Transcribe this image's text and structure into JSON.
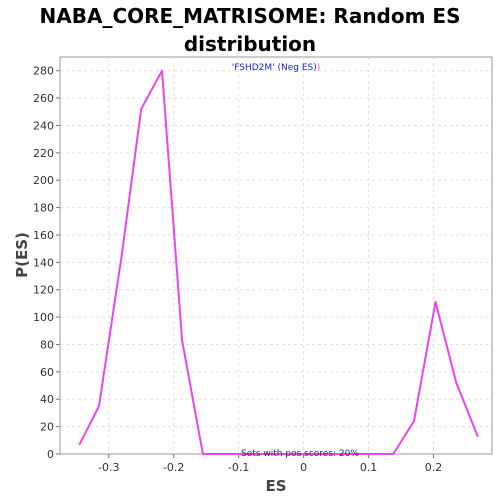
{
  "chart_data": {
    "type": "line",
    "title_lines": [
      "NABA_CORE_MATRISOME: Random ES",
      "distribution"
    ],
    "xlabel": "ES",
    "ylabel": "P(ES)",
    "xlim": [
      -0.375,
      0.29
    ],
    "ylim": [
      0,
      290
    ],
    "x_ticks": [
      -0.3,
      -0.2,
      -0.1,
      0.0,
      0.1,
      0.2
    ],
    "x_tick_labels": [
      "-0.3",
      "-0.2",
      "-0.1",
      "0",
      "0.1",
      "0.2"
    ],
    "y_ticks": [
      0,
      20,
      40,
      60,
      80,
      100,
      120,
      140,
      160,
      180,
      200,
      220,
      240,
      260,
      280
    ],
    "grid": true,
    "series": [
      {
        "color": "#ee44ee",
        "x": [
          -0.345,
          -0.315,
          -0.28,
          -0.25,
          -0.218,
          -0.187,
          -0.155,
          -0.1,
          0.0,
          0.1,
          0.138,
          0.17,
          0.203,
          0.235,
          0.268
        ],
        "y": [
          7,
          35,
          145,
          252,
          280,
          83,
          0,
          0,
          0,
          0,
          0,
          24,
          111,
          52,
          13
        ]
      }
    ],
    "legend": {
      "placement": "top-center",
      "text": "'FSHD2M' (Neg ES)",
      "suffix": ")",
      "color": "#2222cc",
      "suffix_color": "#ee44ee"
    },
    "annotation": "Sets with pos scores: 20%"
  }
}
